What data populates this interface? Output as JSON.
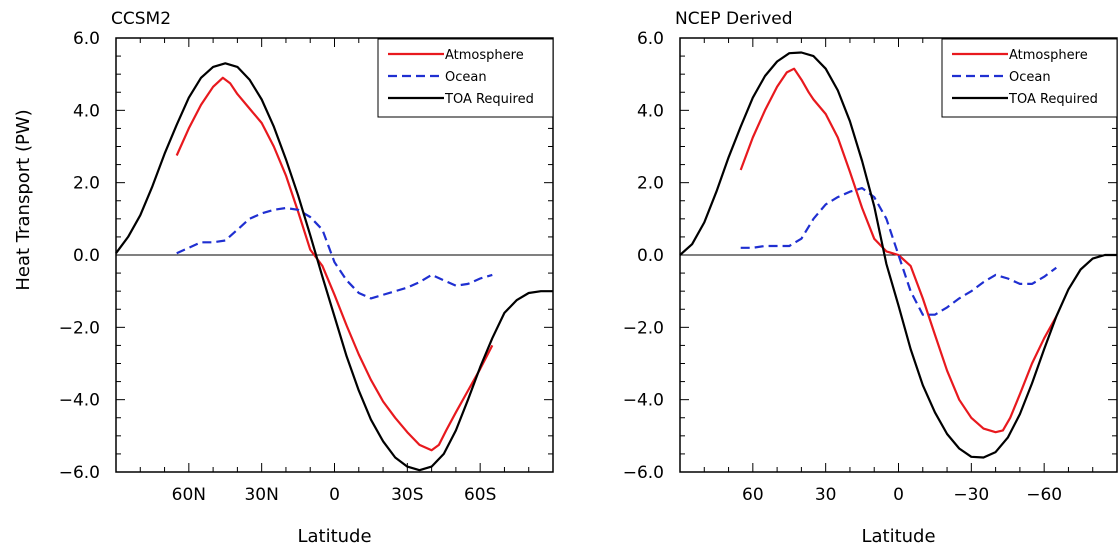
{
  "figure": {
    "y_axis_label": "Heat Transport (PW)"
  },
  "chart_data": [
    {
      "type": "line",
      "title": "CCSM2",
      "xlabel": "Latitude",
      "ylabel": "Heat Transport (PW)",
      "xlim": [
        90,
        -90
      ],
      "ylim": [
        -6,
        6
      ],
      "x_ticks": [
        60,
        30,
        0,
        -30,
        -60
      ],
      "x_tick_labels": [
        "60N",
        "30N",
        "0",
        "30S",
        "60S"
      ],
      "y_ticks": [
        6,
        4,
        2,
        0,
        -2,
        -4,
        -6
      ],
      "y_tick_labels": [
        "6.0",
        "4.0",
        "2.0",
        "0.0",
        "−2.0",
        "−4.0",
        "−6.0"
      ],
      "legend_position": "top-right",
      "series": [
        {
          "name": "Atmosphere",
          "color": "#e8191e",
          "style": "solid",
          "x": [
            65,
            60,
            55,
            50,
            46,
            43,
            40,
            35,
            30,
            25,
            20,
            15,
            10,
            5,
            0,
            -5,
            -10,
            -15,
            -20,
            -25,
            -30,
            -35,
            -40,
            -43,
            -46,
            -50,
            -55,
            -60,
            -65
          ],
          "y": [
            2.75,
            3.5,
            4.15,
            4.65,
            4.9,
            4.75,
            4.45,
            4.05,
            3.65,
            3.0,
            2.2,
            1.2,
            0.15,
            -0.3,
            -1.1,
            -1.95,
            -2.75,
            -3.45,
            -4.05,
            -4.5,
            -4.9,
            -5.25,
            -5.4,
            -5.25,
            -4.85,
            -4.35,
            -3.75,
            -3.15,
            -2.5
          ]
        },
        {
          "name": "Ocean",
          "color": "#1f2fd1",
          "style": "dashed",
          "x": [
            65,
            60,
            55,
            50,
            45,
            40,
            35,
            30,
            25,
            20,
            15,
            10,
            5,
            0,
            -5,
            -10,
            -15,
            -20,
            -25,
            -30,
            -35,
            -40,
            -45,
            -50,
            -55,
            -60,
            -65
          ],
          "y": [
            0.05,
            0.2,
            0.35,
            0.35,
            0.4,
            0.7,
            1.0,
            1.15,
            1.25,
            1.3,
            1.25,
            1.05,
            0.7,
            -0.2,
            -0.7,
            -1.05,
            -1.2,
            -1.1,
            -1.0,
            -0.9,
            -0.75,
            -0.55,
            -0.7,
            -0.85,
            -0.8,
            -0.65,
            -0.55
          ]
        },
        {
          "name": "TOA Required",
          "color": "#000000",
          "style": "solid",
          "x": [
            90,
            85,
            80,
            75,
            70,
            65,
            60,
            55,
            50,
            45,
            40,
            35,
            30,
            25,
            20,
            15,
            10,
            5,
            0,
            -5,
            -10,
            -15,
            -20,
            -25,
            -30,
            -35,
            -40,
            -45,
            -50,
            -55,
            -60,
            -65,
            -70,
            -75,
            -80,
            -85,
            -90
          ],
          "y": [
            0.05,
            0.5,
            1.1,
            1.9,
            2.8,
            3.6,
            4.35,
            4.9,
            5.2,
            5.3,
            5.2,
            4.85,
            4.3,
            3.55,
            2.65,
            1.65,
            0.55,
            -0.6,
            -1.7,
            -2.8,
            -3.75,
            -4.55,
            -5.15,
            -5.6,
            -5.85,
            -5.95,
            -5.85,
            -5.5,
            -4.85,
            -4.0,
            -3.1,
            -2.3,
            -1.6,
            -1.25,
            -1.05,
            -1.0,
            -1.0
          ]
        }
      ]
    },
    {
      "type": "line",
      "title": "NCEP Derived",
      "xlabel": "Latitude",
      "ylabel": "",
      "xlim": [
        90,
        -90
      ],
      "ylim": [
        -6,
        6
      ],
      "x_ticks": [
        60,
        30,
        0,
        -30,
        -60
      ],
      "x_tick_labels": [
        "60",
        "30",
        "0",
        "−30",
        "−60"
      ],
      "y_ticks": [
        6,
        4,
        2,
        0,
        -2,
        -4,
        -6
      ],
      "y_tick_labels": [
        "6.0",
        "4.0",
        "2.0",
        "0.0",
        "−2.0",
        "−4.0",
        "−6.0"
      ],
      "legend_position": "top-right",
      "series": [
        {
          "name": "Atmosphere",
          "color": "#e8191e",
          "style": "solid",
          "x": [
            65,
            60,
            55,
            50,
            46,
            43,
            40,
            37,
            35,
            30,
            25,
            20,
            15,
            10,
            5,
            0,
            -5,
            -10,
            -15,
            -20,
            -25,
            -30,
            -35,
            -40,
            -43,
            -46,
            -50,
            -55,
            -60,
            -65
          ],
          "y": [
            2.35,
            3.25,
            4.0,
            4.65,
            5.05,
            5.15,
            4.85,
            4.5,
            4.3,
            3.9,
            3.25,
            2.3,
            1.3,
            0.45,
            0.1,
            0.0,
            -0.3,
            -1.2,
            -2.2,
            -3.2,
            -4.0,
            -4.5,
            -4.8,
            -4.9,
            -4.85,
            -4.5,
            -3.85,
            -3.0,
            -2.3,
            -1.7
          ]
        },
        {
          "name": "Ocean",
          "color": "#1f2fd1",
          "style": "dashed",
          "x": [
            65,
            60,
            55,
            50,
            45,
            40,
            35,
            30,
            25,
            20,
            15,
            10,
            5,
            0,
            -5,
            -10,
            -15,
            -20,
            -25,
            -30,
            -35,
            -40,
            -45,
            -50,
            -55,
            -60,
            -65
          ],
          "y": [
            0.2,
            0.2,
            0.25,
            0.25,
            0.25,
            0.45,
            1.0,
            1.4,
            1.6,
            1.75,
            1.85,
            1.6,
            1.0,
            0.0,
            -1.0,
            -1.65,
            -1.65,
            -1.45,
            -1.2,
            -1.0,
            -0.75,
            -0.55,
            -0.65,
            -0.8,
            -0.8,
            -0.6,
            -0.35
          ]
        },
        {
          "name": "TOA Required",
          "color": "#000000",
          "style": "solid",
          "x": [
            90,
            85,
            80,
            75,
            70,
            65,
            60,
            55,
            50,
            45,
            40,
            35,
            30,
            25,
            20,
            15,
            10,
            5,
            0,
            -5,
            -10,
            -15,
            -20,
            -25,
            -30,
            -35,
            -40,
            -45,
            -50,
            -55,
            -60,
            -65,
            -70,
            -75,
            -80,
            -85,
            -90
          ],
          "y": [
            0.0,
            0.3,
            0.9,
            1.75,
            2.7,
            3.55,
            4.35,
            4.95,
            5.35,
            5.58,
            5.6,
            5.5,
            5.15,
            4.55,
            3.7,
            2.6,
            1.35,
            -0.25,
            -1.4,
            -2.6,
            -3.6,
            -4.35,
            -4.95,
            -5.35,
            -5.58,
            -5.6,
            -5.45,
            -5.05,
            -4.4,
            -3.55,
            -2.6,
            -1.7,
            -0.95,
            -0.4,
            -0.1,
            0.0,
            0.0
          ]
        }
      ]
    }
  ]
}
